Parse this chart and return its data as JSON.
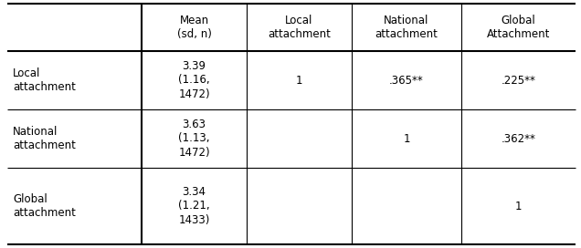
{
  "col_headers": [
    "Mean\n(sd, n)",
    "Local\nattachment",
    "National\nattachment",
    "Global\nAttachment"
  ],
  "row_headers": [
    "Local\nattachment",
    "National\nattachment",
    "Global\nattachment"
  ],
  "cells": [
    [
      "3.39\n(1.16,\n1472)",
      "1",
      ".365**",
      ".225**"
    ],
    [
      "3.63\n(1.13,\n1472)",
      "",
      "1",
      ".362**"
    ],
    [
      "3.34\n(1.21,\n1433)",
      "",
      "",
      "1"
    ]
  ],
  "background_color": "#ffffff",
  "line_color": "#000000",
  "text_color": "#000000",
  "font_size": 8.5
}
